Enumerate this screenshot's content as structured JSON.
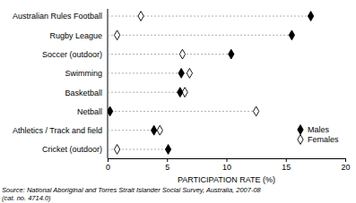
{
  "chart_data": {
    "type": "dot",
    "orientation": "horizontal",
    "categories": [
      "Australian Rules Football",
      "Rugby League",
      "Soccer (outdoor)",
      "Swimming",
      "Basketball",
      "Netball",
      "Athletics / Track and field",
      "Cricket (outdoor)"
    ],
    "series": [
      {
        "name": "Males",
        "color": "#000000",
        "marker": "diamond",
        "values": [
          17.1,
          15.5,
          10.4,
          6.2,
          6.1,
          0.2,
          3.9,
          5.1
        ]
      },
      {
        "name": "Females",
        "color": "#000000",
        "marker": "diamond-open",
        "values": [
          2.8,
          0.8,
          6.3,
          6.9,
          6.5,
          12.5,
          4.4,
          0.8
        ]
      }
    ],
    "x_label": "PARTICIPATION RATE (%)",
    "xlim": [
      0,
      20
    ],
    "xticks": [
      0,
      5,
      10,
      15,
      20
    ],
    "legend": "lower-right",
    "source": [
      "Source: National Aboriginal and Torres Strait Islander Social Survey, Australia, 2007-08",
      "(cat. no. 4714.0)"
    ]
  }
}
